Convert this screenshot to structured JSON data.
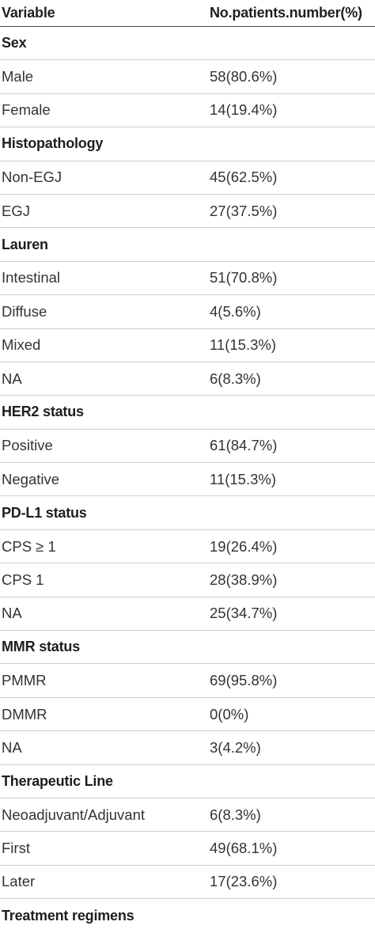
{
  "header": {
    "variable": "Variable",
    "count": "No.patients.number(%)"
  },
  "rows": [
    {
      "type": "section",
      "label": "Sex",
      "value": ""
    },
    {
      "type": "data",
      "label": "Male",
      "value": "58(80.6%)"
    },
    {
      "type": "data",
      "label": "Female",
      "value": "14(19.4%)"
    },
    {
      "type": "section",
      "label": "Histopathology",
      "value": ""
    },
    {
      "type": "data",
      "label": "Non-EGJ",
      "value": "45(62.5%)"
    },
    {
      "type": "data",
      "label": "EGJ",
      "value": "27(37.5%)"
    },
    {
      "type": "section",
      "label": "Lauren",
      "value": ""
    },
    {
      "type": "data",
      "label": "Intestinal",
      "value": "51(70.8%)"
    },
    {
      "type": "data",
      "label": "Diffuse",
      "value": "4(5.6%)"
    },
    {
      "type": "data",
      "label": "Mixed",
      "value": "11(15.3%)"
    },
    {
      "type": "data",
      "label": "NA",
      "value": "6(8.3%)"
    },
    {
      "type": "section",
      "label": "HER2 status",
      "value": ""
    },
    {
      "type": "data",
      "label": "Positive",
      "value": "61(84.7%)"
    },
    {
      "type": "data",
      "label": "Negative",
      "value": "11(15.3%)"
    },
    {
      "type": "section",
      "label": "PD-L1 status",
      "value": ""
    },
    {
      "type": "data",
      "label": "CPS ≥ 1",
      "value": "19(26.4%)"
    },
    {
      "type": "data",
      "label": "CPS  1",
      "value": "28(38.9%)"
    },
    {
      "type": "data",
      "label": "NA",
      "value": "25(34.7%)"
    },
    {
      "type": "section",
      "label": "MMR status",
      "value": ""
    },
    {
      "type": "data",
      "label": "PMMR",
      "value": "69(95.8%)"
    },
    {
      "type": "data",
      "label": "DMMR",
      "value": "0(0%)"
    },
    {
      "type": "data",
      "label": "NA",
      "value": "3(4.2%)"
    },
    {
      "type": "section",
      "label": "Therapeutic Line",
      "value": ""
    },
    {
      "type": "data",
      "label": "Neoadjuvant/Adjuvant",
      "value": "6(8.3%)"
    },
    {
      "type": "data",
      "label": "First",
      "value": "49(68.1%)"
    },
    {
      "type": "data",
      "label": "Later",
      "value": "17(23.6%)"
    },
    {
      "type": "section",
      "label": "Treatment regimens",
      "value": ""
    }
  ]
}
